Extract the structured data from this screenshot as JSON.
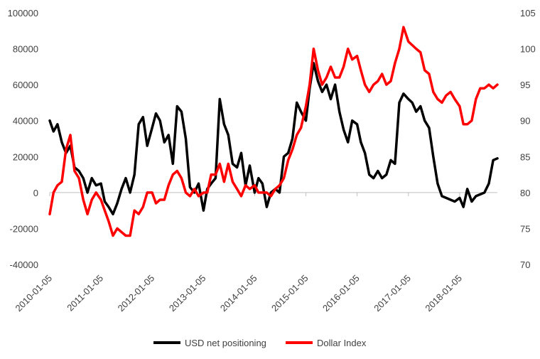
{
  "chart_data": {
    "type": "line",
    "title": "",
    "xlabel": "",
    "ylabel": "",
    "y2label": "",
    "x_tick_labels": [
      "2010-01-05",
      "2011-01-05",
      "2012-01-05",
      "2013-01-05",
      "2014-01-05",
      "2015-01-05",
      "2016-01-05",
      "2017-01-05",
      "2018-01-05"
    ],
    "x_range": [
      "2010-01-05",
      "2018-10-01"
    ],
    "y_left": {
      "min": -40000,
      "max": 100000,
      "ticks": [
        "-40000",
        "-20000",
        "0",
        "20000",
        "40000",
        "60000",
        "80000",
        "100000"
      ]
    },
    "y_right": {
      "min": 70,
      "max": 105,
      "ticks": [
        "70",
        "75",
        "80",
        "85",
        "90",
        "95",
        "100",
        "105"
      ]
    },
    "grid": false,
    "legend_position": "bottom",
    "series": [
      {
        "name": "USD net positioning",
        "axis": "left",
        "color": "#000000",
        "points": [
          [
            "2010-01-05",
            40000
          ],
          [
            "2010-02-01",
            34000
          ],
          [
            "2010-03-01",
            38000
          ],
          [
            "2010-04-01",
            28000
          ],
          [
            "2010-05-01",
            22000
          ],
          [
            "2010-06-01",
            26000
          ],
          [
            "2010-07-01",
            14000
          ],
          [
            "2010-08-01",
            12000
          ],
          [
            "2010-09-01",
            8000
          ],
          [
            "2010-10-01",
            0
          ],
          [
            "2010-11-01",
            8000
          ],
          [
            "2010-12-01",
            4000
          ],
          [
            "2011-01-05",
            5000
          ],
          [
            "2011-02-01",
            -5000
          ],
          [
            "2011-03-01",
            -8000
          ],
          [
            "2011-04-01",
            -12000
          ],
          [
            "2011-05-01",
            -6000
          ],
          [
            "2011-06-01",
            2000
          ],
          [
            "2011-07-01",
            8000
          ],
          [
            "2011-08-01",
            0
          ],
          [
            "2011-09-01",
            10000
          ],
          [
            "2011-10-01",
            38000
          ],
          [
            "2011-11-01",
            42000
          ],
          [
            "2011-12-01",
            26000
          ],
          [
            "2012-01-05",
            36000
          ],
          [
            "2012-02-01",
            44000
          ],
          [
            "2012-03-01",
            40000
          ],
          [
            "2012-04-01",
            28000
          ],
          [
            "2012-05-01",
            32000
          ],
          [
            "2012-06-01",
            16000
          ],
          [
            "2012-07-01",
            48000
          ],
          [
            "2012-08-01",
            45000
          ],
          [
            "2012-09-01",
            30000
          ],
          [
            "2012-10-01",
            3000
          ],
          [
            "2012-11-01",
            0
          ],
          [
            "2012-12-01",
            5000
          ],
          [
            "2013-01-05",
            -10000
          ],
          [
            "2013-02-01",
            2000
          ],
          [
            "2013-03-01",
            5000
          ],
          [
            "2013-04-01",
            8000
          ],
          [
            "2013-05-01",
            52000
          ],
          [
            "2013-06-01",
            38000
          ],
          [
            "2013-07-01",
            32000
          ],
          [
            "2013-08-01",
            16000
          ],
          [
            "2013-09-01",
            14000
          ],
          [
            "2013-10-01",
            22000
          ],
          [
            "2013-11-01",
            4000
          ],
          [
            "2013-12-01",
            15000
          ],
          [
            "2014-01-05",
            0
          ],
          [
            "2014-02-01",
            8000
          ],
          [
            "2014-03-01",
            5000
          ],
          [
            "2014-04-01",
            -8000
          ],
          [
            "2014-05-01",
            0
          ],
          [
            "2014-06-01",
            2000
          ],
          [
            "2014-07-01",
            0
          ],
          [
            "2014-08-01",
            20000
          ],
          [
            "2014-09-01",
            22000
          ],
          [
            "2014-10-01",
            30000
          ],
          [
            "2014-11-01",
            50000
          ],
          [
            "2014-12-01",
            45000
          ],
          [
            "2015-01-05",
            40000
          ],
          [
            "2015-02-01",
            58000
          ],
          [
            "2015-03-01",
            72000
          ],
          [
            "2015-04-01",
            62000
          ],
          [
            "2015-05-01",
            56000
          ],
          [
            "2015-06-01",
            60000
          ],
          [
            "2015-07-01",
            52000
          ],
          [
            "2015-08-01",
            60000
          ],
          [
            "2015-09-01",
            45000
          ],
          [
            "2015-10-01",
            35000
          ],
          [
            "2015-11-01",
            28000
          ],
          [
            "2015-12-01",
            40000
          ],
          [
            "2016-01-05",
            38000
          ],
          [
            "2016-02-01",
            28000
          ],
          [
            "2016-03-01",
            22000
          ],
          [
            "2016-04-01",
            10000
          ],
          [
            "2016-05-01",
            8000
          ],
          [
            "2016-06-01",
            12000
          ],
          [
            "2016-07-01",
            8000
          ],
          [
            "2016-08-01",
            10000
          ],
          [
            "2016-09-01",
            18000
          ],
          [
            "2016-10-01",
            16000
          ],
          [
            "2016-11-01",
            50000
          ],
          [
            "2016-12-01",
            55000
          ],
          [
            "2017-01-05",
            52000
          ],
          [
            "2017-02-01",
            50000
          ],
          [
            "2017-03-01",
            45000
          ],
          [
            "2017-04-01",
            48000
          ],
          [
            "2017-05-01",
            40000
          ],
          [
            "2017-06-01",
            36000
          ],
          [
            "2017-07-01",
            20000
          ],
          [
            "2017-08-01",
            5000
          ],
          [
            "2017-09-01",
            -2000
          ],
          [
            "2017-10-01",
            -3000
          ],
          [
            "2017-11-01",
            -4000
          ],
          [
            "2017-12-01",
            -5000
          ],
          [
            "2018-01-05",
            -3000
          ],
          [
            "2018-02-01",
            -8000
          ],
          [
            "2018-03-01",
            2000
          ],
          [
            "2018-04-01",
            -5000
          ],
          [
            "2018-05-01",
            -2000
          ],
          [
            "2018-06-01",
            -1000
          ],
          [
            "2018-07-01",
            0
          ],
          [
            "2018-08-01",
            5000
          ],
          [
            "2018-09-01",
            18000
          ],
          [
            "2018-10-01",
            19000
          ]
        ]
      },
      {
        "name": "Dollar Index",
        "axis": "right",
        "color": "#ff0000",
        "points": [
          [
            "2010-01-05",
            77
          ],
          [
            "2010-02-01",
            80
          ],
          [
            "2010-03-01",
            81
          ],
          [
            "2010-04-01",
            81.5
          ],
          [
            "2010-05-01",
            86
          ],
          [
            "2010-06-01",
            88
          ],
          [
            "2010-07-01",
            83
          ],
          [
            "2010-08-01",
            82
          ],
          [
            "2010-09-01",
            79
          ],
          [
            "2010-10-01",
            77
          ],
          [
            "2010-11-01",
            79
          ],
          [
            "2010-12-01",
            80
          ],
          [
            "2011-01-05",
            79
          ],
          [
            "2011-02-01",
            77.5
          ],
          [
            "2011-03-01",
            76
          ],
          [
            "2011-04-01",
            74
          ],
          [
            "2011-05-01",
            75
          ],
          [
            "2011-06-01",
            74.5
          ],
          [
            "2011-07-01",
            74
          ],
          [
            "2011-08-01",
            74
          ],
          [
            "2011-09-01",
            77.5
          ],
          [
            "2011-10-01",
            77
          ],
          [
            "2011-11-01",
            78
          ],
          [
            "2011-12-01",
            80
          ],
          [
            "2012-01-05",
            80
          ],
          [
            "2012-02-01",
            78.5
          ],
          [
            "2012-03-01",
            79
          ],
          [
            "2012-04-01",
            79
          ],
          [
            "2012-05-01",
            81
          ],
          [
            "2012-06-01",
            82.5
          ],
          [
            "2012-07-01",
            83
          ],
          [
            "2012-08-01",
            82
          ],
          [
            "2012-09-01",
            80
          ],
          [
            "2012-10-01",
            79.5
          ],
          [
            "2012-11-01",
            80.5
          ],
          [
            "2012-12-01",
            79.5
          ],
          [
            "2013-01-05",
            80
          ],
          [
            "2013-02-01",
            80
          ],
          [
            "2013-03-01",
            82.5
          ],
          [
            "2013-04-01",
            82.5
          ],
          [
            "2013-05-01",
            84
          ],
          [
            "2013-06-01",
            81.5
          ],
          [
            "2013-07-01",
            84
          ],
          [
            "2013-08-01",
            81.5
          ],
          [
            "2013-09-01",
            80.5
          ],
          [
            "2013-10-01",
            79.5
          ],
          [
            "2013-11-01",
            81
          ],
          [
            "2013-12-01",
            80.5
          ],
          [
            "2014-01-05",
            81
          ],
          [
            "2014-02-01",
            80
          ],
          [
            "2014-03-01",
            80
          ],
          [
            "2014-04-01",
            80
          ],
          [
            "2014-05-01",
            79.5
          ],
          [
            "2014-06-01",
            80.5
          ],
          [
            "2014-07-01",
            81
          ],
          [
            "2014-08-01",
            82
          ],
          [
            "2014-09-01",
            84.5
          ],
          [
            "2014-10-01",
            86
          ],
          [
            "2014-11-01",
            88
          ],
          [
            "2014-12-01",
            89
          ],
          [
            "2015-01-05",
            92
          ],
          [
            "2015-02-01",
            95
          ],
          [
            "2015-03-01",
            100
          ],
          [
            "2015-04-01",
            97
          ],
          [
            "2015-05-01",
            95
          ],
          [
            "2015-06-01",
            96
          ],
          [
            "2015-07-01",
            97.5
          ],
          [
            "2015-08-01",
            96
          ],
          [
            "2015-09-01",
            96
          ],
          [
            "2015-10-01",
            97.5
          ],
          [
            "2015-11-01",
            100
          ],
          [
            "2015-12-01",
            98.5
          ],
          [
            "2016-01-05",
            99
          ],
          [
            "2016-02-01",
            97
          ],
          [
            "2016-03-01",
            95
          ],
          [
            "2016-04-01",
            94
          ],
          [
            "2016-05-01",
            95
          ],
          [
            "2016-06-01",
            95.5
          ],
          [
            "2016-07-01",
            96.5
          ],
          [
            "2016-08-01",
            95
          ],
          [
            "2016-09-01",
            95.5
          ],
          [
            "2016-10-01",
            98
          ],
          [
            "2016-11-01",
            100
          ],
          [
            "2016-12-01",
            103
          ],
          [
            "2017-01-05",
            101
          ],
          [
            "2017-02-01",
            100.5
          ],
          [
            "2017-03-01",
            100
          ],
          [
            "2017-04-01",
            99.5
          ],
          [
            "2017-05-01",
            97
          ],
          [
            "2017-06-01",
            96.5
          ],
          [
            "2017-07-01",
            94
          ],
          [
            "2017-08-01",
            93
          ],
          [
            "2017-09-01",
            92.5
          ],
          [
            "2017-10-01",
            93.5
          ],
          [
            "2017-11-01",
            94
          ],
          [
            "2017-12-01",
            93
          ],
          [
            "2018-01-05",
            92
          ],
          [
            "2018-02-01",
            89.5
          ],
          [
            "2018-03-01",
            89.5
          ],
          [
            "2018-04-01",
            90
          ],
          [
            "2018-05-01",
            93
          ],
          [
            "2018-06-01",
            94.5
          ],
          [
            "2018-07-01",
            94.5
          ],
          [
            "2018-08-01",
            95
          ],
          [
            "2018-09-01",
            94.5
          ],
          [
            "2018-10-01",
            95
          ]
        ]
      }
    ]
  }
}
